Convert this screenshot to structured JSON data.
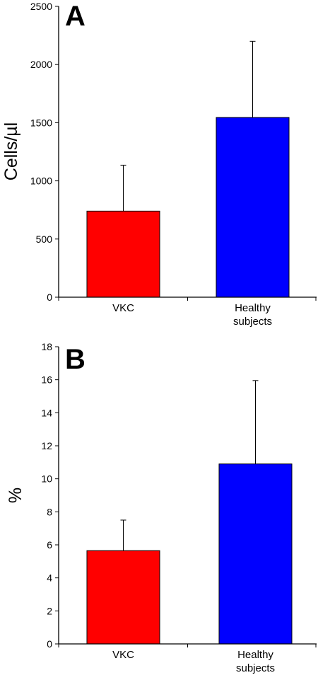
{
  "chart_data": [
    {
      "type": "bar",
      "panel_label": "A",
      "ylabel": "Cells/µl",
      "xlabel": "",
      "categories": [
        "VKC",
        "Healthy subjects"
      ],
      "category_lines": [
        [
          "VKC"
        ],
        [
          "Healthy",
          "subjects"
        ]
      ],
      "values": [
        740,
        1545
      ],
      "error_plus": [
        395,
        655
      ],
      "ylim": [
        0,
        2500
      ],
      "yticks": [
        0,
        500,
        1000,
        1500,
        2000,
        2500
      ],
      "bar_colors": [
        "#ff0000",
        "#0000ff"
      ],
      "grid": false
    },
    {
      "type": "bar",
      "panel_label": "B",
      "ylabel": "%",
      "xlabel": "",
      "categories": [
        "VKC",
        "Healthy subjects"
      ],
      "category_lines": [
        [
          "VKC"
        ],
        [
          "Healthy",
          "subjects"
        ]
      ],
      "values": [
        5.65,
        10.9
      ],
      "error_plus": [
        1.85,
        5.05
      ],
      "ylim": [
        0,
        18
      ],
      "yticks": [
        0,
        2,
        4,
        6,
        8,
        10,
        12,
        14,
        16,
        18
      ],
      "bar_colors": [
        "#ff0000",
        "#0000ff"
      ],
      "grid": false
    }
  ]
}
